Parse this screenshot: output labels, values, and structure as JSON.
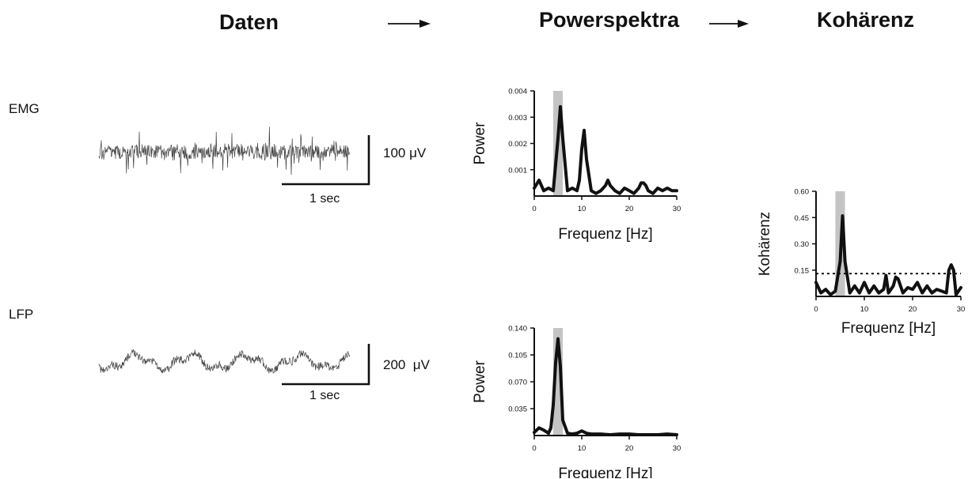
{
  "headings": {
    "data": "Daten",
    "spectra": "Powerspektra",
    "coherence": "Kohärenz"
  },
  "signals": {
    "emg": {
      "label": "EMG",
      "amp_scale": "100 μV",
      "time_scale": "1 sec"
    },
    "lfp": {
      "label": "LFP",
      "amp_scale": "200  μV",
      "time_scale": "1 sec"
    }
  },
  "chart_data": [
    {
      "type": "line",
      "id": "emg-power-spectrum",
      "title": "",
      "xlabel": "Frequenz [Hz]",
      "ylabel": "Power",
      "xlim": [
        0,
        30
      ],
      "ylim": [
        0,
        0.004
      ],
      "xticks": [
        "0",
        "10",
        "20",
        "30"
      ],
      "yticks": [
        "0.001",
        "0.002",
        "0.003",
        "0.004"
      ],
      "highlight_band": [
        4,
        6
      ],
      "series": [
        {
          "x": [
            0,
            1,
            2,
            3,
            4,
            5,
            5.5,
            6,
            7,
            8,
            9,
            9.5,
            10,
            10.5,
            11,
            12,
            13,
            14,
            15,
            15.5,
            16,
            17,
            18,
            19,
            20,
            21,
            22,
            22.5,
            23,
            23.5,
            24,
            25,
            26,
            27,
            28,
            29,
            30
          ],
          "y": [
            0.0003,
            0.0006,
            0.0002,
            0.0003,
            0.0002,
            0.0022,
            0.0034,
            0.0022,
            0.0002,
            0.0003,
            0.0002,
            0.0006,
            0.0018,
            0.0025,
            0.0014,
            0.0002,
            0.0001,
            0.0002,
            0.0004,
            0.0006,
            0.0004,
            0.0002,
            0.0001,
            0.0003,
            0.0002,
            0.0001,
            0.0003,
            0.0005,
            0.0005,
            0.0004,
            0.0002,
            0.0001,
            0.0003,
            0.0002,
            0.0003,
            0.0002,
            0.0002
          ]
        }
      ]
    },
    {
      "type": "line",
      "id": "lfp-power-spectrum",
      "title": "",
      "xlabel": "Frequenz [Hz]",
      "ylabel": "Power",
      "xlim": [
        0,
        30
      ],
      "ylim": [
        0,
        0.14
      ],
      "xticks": [
        "0",
        "10",
        "20",
        "30"
      ],
      "yticks": [
        "0.035",
        "0.070",
        "0.105",
        "0.140"
      ],
      "highlight_band": [
        4,
        6
      ],
      "series": [
        {
          "x": [
            0,
            1,
            2,
            3,
            3.5,
            4,
            4.5,
            5,
            5.5,
            6,
            7,
            8,
            9,
            10,
            11,
            12,
            14,
            16,
            18,
            20,
            22,
            24,
            26,
            28,
            30
          ],
          "y": [
            0.004,
            0.01,
            0.007,
            0.003,
            0.01,
            0.04,
            0.095,
            0.126,
            0.09,
            0.02,
            0.003,
            0.002,
            0.003,
            0.006,
            0.003,
            0.002,
            0.002,
            0.001,
            0.002,
            0.002,
            0.001,
            0.001,
            0.001,
            0.002,
            0.001
          ]
        }
      ]
    },
    {
      "type": "line",
      "id": "coherence",
      "title": "",
      "xlabel": "Frequenz [Hz]",
      "ylabel": "Kohärenz",
      "xlim": [
        0,
        30
      ],
      "ylim": [
        0,
        0.6
      ],
      "xticks": [
        "0",
        "10",
        "20",
        "30"
      ],
      "yticks": [
        "0.15",
        "0.30",
        "0.45",
        "0.60"
      ],
      "highlight_band": [
        4,
        6
      ],
      "threshold": 0.13,
      "series": [
        {
          "x": [
            0,
            1,
            2,
            3,
            4,
            5,
            5.5,
            6,
            7,
            8,
            9,
            10,
            11,
            12,
            13,
            14,
            14.5,
            15,
            16,
            16.5,
            17,
            18,
            19,
            20,
            21,
            22,
            23,
            24,
            25,
            26,
            27,
            27.5,
            28,
            28.5,
            29,
            30
          ],
          "y": [
            0.08,
            0.02,
            0.04,
            0.01,
            0.03,
            0.2,
            0.46,
            0.2,
            0.02,
            0.06,
            0.02,
            0.08,
            0.02,
            0.06,
            0.02,
            0.04,
            0.12,
            0.02,
            0.06,
            0.11,
            0.1,
            0.02,
            0.05,
            0.04,
            0.08,
            0.02,
            0.06,
            0.02,
            0.04,
            0.03,
            0.02,
            0.15,
            0.18,
            0.15,
            0.01,
            0.05
          ]
        }
      ]
    }
  ]
}
